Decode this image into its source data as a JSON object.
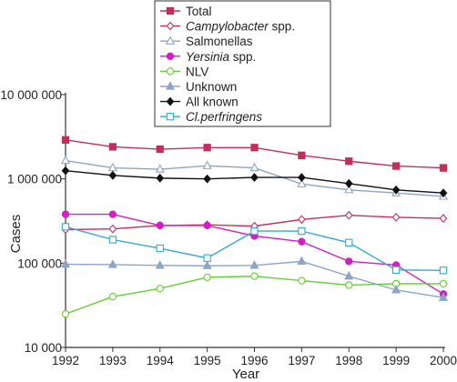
{
  "chart_data": {
    "type": "line",
    "xlabel": "Year",
    "ylabel": "Cases",
    "yscale": "log",
    "ylim": [
      10000,
      10000000
    ],
    "x": [
      1992,
      1993,
      1994,
      1995,
      1996,
      1997,
      1998,
      1999,
      2000
    ],
    "x_tick_labels": [
      "1992",
      "1993",
      "1994",
      "1995",
      "1996",
      "1997",
      "1998",
      "1999",
      "2000"
    ],
    "y_ticks": [
      10000,
      100000,
      1000000,
      10000000
    ],
    "y_tick_labels": [
      "10 000",
      "100 000",
      "1 000 000",
      "10 000 000"
    ],
    "legend_placement": "top-center",
    "grid": false,
    "series": [
      {
        "name": "Total",
        "style": "normal",
        "color": "#c0305a",
        "marker": "square-filled",
        "values": [
          2900000,
          2400000,
          2250000,
          2350000,
          2350000,
          1900000,
          1620000,
          1420000,
          1350000
        ]
      },
      {
        "name": "Campylobacter",
        "suffix": " spp.",
        "style": "italic",
        "color": "#c0305a",
        "marker": "diamond-open",
        "values": [
          250000,
          255000,
          280000,
          285000,
          275000,
          330000,
          370000,
          350000,
          340000
        ]
      },
      {
        "name": "Salmonellas",
        "style": "normal",
        "color": "#8da4c8",
        "marker": "triangle-open",
        "values": [
          1650000,
          1350000,
          1300000,
          1430000,
          1350000,
          870000,
          740000,
          680000,
          620000
        ]
      },
      {
        "name": "Yersinia",
        "suffix": " spp.",
        "style": "italic",
        "color": "#d020c0",
        "marker": "circle-filled",
        "values": [
          380000,
          380000,
          280000,
          280000,
          210000,
          180000,
          105000,
          95000,
          43000
        ]
      },
      {
        "name": "NLV",
        "style": "normal",
        "color": "#66cc33",
        "marker": "circle-open",
        "values": [
          25000,
          40000,
          50000,
          68000,
          70000,
          62000,
          55000,
          57000,
          57000
        ]
      },
      {
        "name": "Unknown",
        "style": "normal",
        "color": "#8da4c8",
        "marker": "triangle-filled",
        "values": [
          97000,
          96000,
          94000,
          93000,
          94000,
          105000,
          70000,
          48000,
          39000
        ]
      },
      {
        "name": "All known",
        "style": "normal",
        "color": "#111111",
        "marker": "diamond-filled",
        "values": [
          1250000,
          1100000,
          1020000,
          1000000,
          1040000,
          1040000,
          880000,
          740000,
          680000
        ]
      },
      {
        "name": "Cl.perfringens",
        "style": "italic",
        "color": "#33aacc",
        "marker": "square-open",
        "values": [
          270000,
          190000,
          150000,
          115000,
          240000,
          240000,
          175000,
          83000,
          82000
        ]
      }
    ]
  }
}
